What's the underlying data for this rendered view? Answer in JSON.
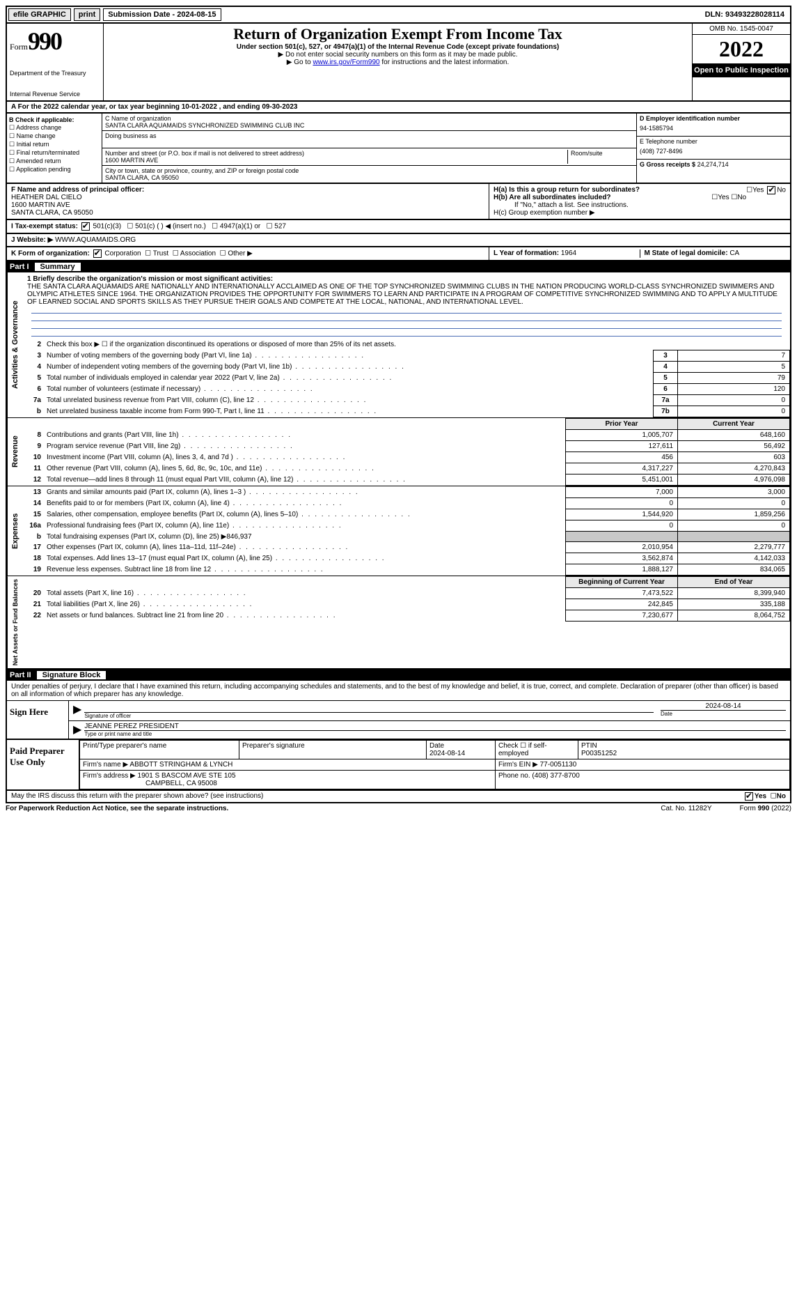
{
  "topbar": {
    "efile": "efile GRAPHIC",
    "print": "print",
    "submission": "Submission Date - 2024-08-15",
    "dln": "DLN: 93493228028114"
  },
  "header": {
    "form_word": "Form",
    "form_num": "990",
    "dept": "Department of the Treasury",
    "irs": "Internal Revenue Service",
    "title": "Return of Organization Exempt From Income Tax",
    "sub": "Under section 501(c), 527, or 4947(a)(1) of the Internal Revenue Code (except private foundations)",
    "note1": "▶ Do not enter social security numbers on this form as it may be made public.",
    "note2_pre": "▶ Go to ",
    "note2_link": "www.irs.gov/Form990",
    "note2_post": " for instructions and the latest information.",
    "omb": "OMB No. 1545-0047",
    "year": "2022",
    "open": "Open to Public Inspection"
  },
  "line_a": "A For the 2022 calendar year, or tax year beginning 10-01-2022  , and ending 09-30-2023",
  "col_b": {
    "hdr": "B Check if applicable:",
    "items": [
      "Address change",
      "Name change",
      "Initial return",
      "Final return/terminated",
      "Amended return",
      "Application pending"
    ]
  },
  "col_c": {
    "name_label": "C Name of organization",
    "name": "SANTA CLARA AQUAMAIDS SYNCHRONIZED SWIMMING CLUB INC",
    "dba_label": "Doing business as",
    "addr_label": "Number and street (or P.O. box if mail is not delivered to street address)",
    "addr": "1600 MARTIN AVE",
    "room_label": "Room/suite",
    "city_label": "City or town, state or province, country, and ZIP or foreign postal code",
    "city": "SANTA CLARA, CA  95050"
  },
  "col_d": {
    "ein_label": "D Employer identification number",
    "ein": "94-1585794",
    "phone_label": "E Telephone number",
    "phone": "(408) 727-8496",
    "gross_label": "G Gross receipts $",
    "gross": "24,274,714"
  },
  "row_f": {
    "f_label": "F  Name and address of principal officer:",
    "f_name": "HEATHER DAL CIELO",
    "f_addr1": "1600 MARTIN AVE",
    "f_addr2": "SANTA CLARA, CA  95050",
    "h_a": "H(a)  Is this a group return for subordinates?",
    "h_b": "H(b)  Are all subordinates included?",
    "h_note": "If \"No,\" attach a list. See instructions.",
    "h_c": "H(c)  Group exemption number ▶",
    "yes": "Yes",
    "no": "No"
  },
  "row_i": {
    "label": "I    Tax-exempt status:",
    "c3": "501(c)(3)",
    "c": "501(c) (   ) ◀ (insert no.)",
    "a1": "4947(a)(1) or",
    "s527": "527"
  },
  "row_j": {
    "label": "J   Website: ▶",
    "val": " WWW.AQUAMAIDS.ORG"
  },
  "row_k": {
    "label": "K Form of organization:",
    "corp": "Corporation",
    "trust": "Trust",
    "assoc": "Association",
    "other": "Other ▶",
    "l_label": "L Year of formation:",
    "l_val": "1964",
    "m_label": "M State of legal domicile:",
    "m_val": "CA"
  },
  "part1": {
    "label": "Part I",
    "title": "Summary"
  },
  "mission": {
    "label": "1   Briefly describe the organization's mission or most significant activities:",
    "text": "THE SANTA CLARA AQUAMAIDS ARE NATIONALLY AND INTERNATIONALLY ACCLAIMED AS ONE OF THE TOP SYNCHRONIZED SWIMMING CLUBS IN THE NATION PRODUCING WORLD-CLASS SYNCHRONIZED SWIMMERS AND OLYMPIC ATHLETES SINCE 1964. THE ORGANIZATION PROVIDES THE OPPORTUNITY FOR SWIMMERS TO LEARN AND PARTICIPATE IN A PROGRAM OF COMPETITIVE SYNCHRONIZED SWIMMING AND TO APPLY A MULTITUDE OF LEARNED SOCIAL AND SPORTS SKILLS AS THEY PURSUE THEIR GOALS AND COMPETE AT THE LOCAL, NATIONAL, AND INTERNATIONAL LEVEL."
  },
  "side_labels": {
    "gov": "Activities & Governance",
    "rev": "Revenue",
    "exp": "Expenses",
    "net": "Net Assets or Fund Balances"
  },
  "gov_lines": [
    {
      "ln": "2",
      "desc": "Check this box ▶ ☐ if the organization discontinued its operations or disposed of more than 25% of its net assets."
    },
    {
      "ln": "3",
      "desc": "Number of voting members of the governing body (Part VI, line 1a)",
      "box": "3",
      "val": "7"
    },
    {
      "ln": "4",
      "desc": "Number of independent voting members of the governing body (Part VI, line 1b)",
      "box": "4",
      "val": "5"
    },
    {
      "ln": "5",
      "desc": "Total number of individuals employed in calendar year 2022 (Part V, line 2a)",
      "box": "5",
      "val": "79"
    },
    {
      "ln": "6",
      "desc": "Total number of volunteers (estimate if necessary)",
      "box": "6",
      "val": "120"
    },
    {
      "ln": "7a",
      "desc": "Total unrelated business revenue from Part VIII, column (C), line 12",
      "box": "7a",
      "val": "0"
    },
    {
      "ln": "b",
      "desc": "Net unrelated business taxable income from Form 990-T, Part I, line 11",
      "box": "7b",
      "val": "0"
    }
  ],
  "col_headers": {
    "prior": "Prior Year",
    "current": "Current Year",
    "begin": "Beginning of Current Year",
    "end": "End of Year"
  },
  "rev_lines": [
    {
      "ln": "8",
      "desc": "Contributions and grants (Part VIII, line 1h)",
      "prior": "1,005,707",
      "cur": "648,160"
    },
    {
      "ln": "9",
      "desc": "Program service revenue (Part VIII, line 2g)",
      "prior": "127,611",
      "cur": "56,492"
    },
    {
      "ln": "10",
      "desc": "Investment income (Part VIII, column (A), lines 3, 4, and 7d )",
      "prior": "456",
      "cur": "603"
    },
    {
      "ln": "11",
      "desc": "Other revenue (Part VIII, column (A), lines 5, 6d, 8c, 9c, 10c, and 11e)",
      "prior": "4,317,227",
      "cur": "4,270,843"
    },
    {
      "ln": "12",
      "desc": "Total revenue—add lines 8 through 11 (must equal Part VIII, column (A), line 12)",
      "prior": "5,451,001",
      "cur": "4,976,098"
    }
  ],
  "exp_lines": [
    {
      "ln": "13",
      "desc": "Grants and similar amounts paid (Part IX, column (A), lines 1–3 )",
      "prior": "7,000",
      "cur": "3,000"
    },
    {
      "ln": "14",
      "desc": "Benefits paid to or for members (Part IX, column (A), line 4)",
      "prior": "0",
      "cur": "0"
    },
    {
      "ln": "15",
      "desc": "Salaries, other compensation, employee benefits (Part IX, column (A), lines 5–10)",
      "prior": "1,544,920",
      "cur": "1,859,256"
    },
    {
      "ln": "16a",
      "desc": "Professional fundraising fees (Part IX, column (A), line 11e)",
      "prior": "0",
      "cur": "0"
    },
    {
      "ln": "b",
      "desc": "Total fundraising expenses (Part IX, column (D), line 25) ▶846,937",
      "prior": "",
      "cur": "",
      "grey": true
    },
    {
      "ln": "17",
      "desc": "Other expenses (Part IX, column (A), lines 11a–11d, 11f–24e)",
      "prior": "2,010,954",
      "cur": "2,279,777"
    },
    {
      "ln": "18",
      "desc": "Total expenses. Add lines 13–17 (must equal Part IX, column (A), line 25)",
      "prior": "3,562,874",
      "cur": "4,142,033"
    },
    {
      "ln": "19",
      "desc": "Revenue less expenses. Subtract line 18 from line 12",
      "prior": "1,888,127",
      "cur": "834,065"
    }
  ],
  "net_lines": [
    {
      "ln": "20",
      "desc": "Total assets (Part X, line 16)",
      "prior": "7,473,522",
      "cur": "8,399,940"
    },
    {
      "ln": "21",
      "desc": "Total liabilities (Part X, line 26)",
      "prior": "242,845",
      "cur": "335,188"
    },
    {
      "ln": "22",
      "desc": "Net assets or fund balances. Subtract line 21 from line 20",
      "prior": "7,230,677",
      "cur": "8,064,752"
    }
  ],
  "part2": {
    "label": "Part II",
    "title": "Signature Block"
  },
  "perjury": "Under penalties of perjury, I declare that I have examined this return, including accompanying schedules and statements, and to the best of my knowledge and belief, it is true, correct, and complete. Declaration of preparer (other than officer) is based on all information of which preparer has any knowledge.",
  "sign": {
    "here": "Sign Here",
    "sig_officer": "Signature of officer",
    "date": "Date",
    "date_val": "2024-08-14",
    "name": "JEANNE PEREZ PRESIDENT",
    "name_label": "Type or print name and title"
  },
  "paid": {
    "label": "Paid Preparer Use Only",
    "print_name": "Print/Type preparer's name",
    "prep_sig": "Preparer's signature",
    "date": "Date",
    "date_val": "2024-08-14",
    "check": "Check ☐ if self-employed",
    "ptin": "PTIN",
    "ptin_val": "P00351252",
    "firm_name_label": "Firm's name    ▶",
    "firm_name": "ABBOTT STRINGHAM & LYNCH",
    "firm_ein_label": "Firm's EIN ▶",
    "firm_ein": "77-0051130",
    "firm_addr_label": "Firm's address ▶",
    "firm_addr1": "1901 S BASCOM AVE STE 105",
    "firm_addr2": "CAMPBELL, CA  95008",
    "phone_label": "Phone no.",
    "phone": "(408) 377-8700"
  },
  "discuss": "May the IRS discuss this return with the preparer shown above? (see instructions)",
  "footer": {
    "left": "For Paperwork Reduction Act Notice, see the separate instructions.",
    "mid": "Cat. No. 11282Y",
    "right": "Form 990 (2022)"
  },
  "yesno": {
    "yes": "Yes",
    "no": "No"
  }
}
